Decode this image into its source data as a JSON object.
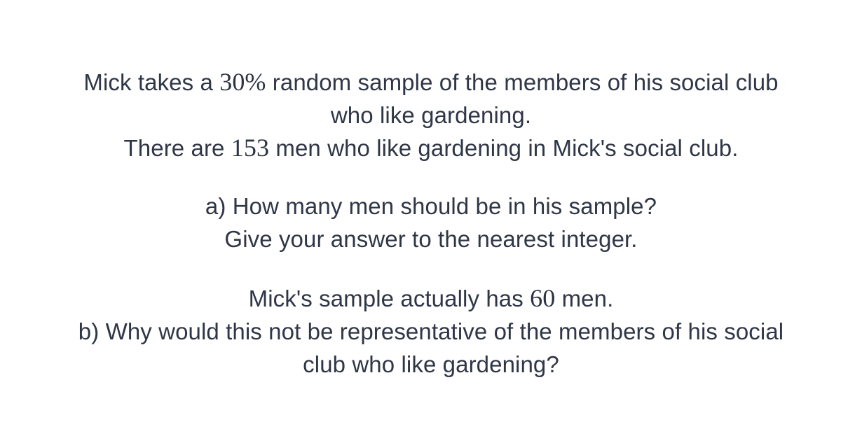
{
  "question": {
    "intro": {
      "line1_before": "Mick takes a ",
      "line1_math": "30%",
      "line1_after": " random sample of the members of his social club",
      "line2": "who like gardening.",
      "line3_before": "There are ",
      "line3_math": "153",
      "line3_after": " men who like gardening in Mick's social club."
    },
    "part_a": {
      "line1": "a) How many men should be in his sample?",
      "line2": "Give your answer to the nearest integer."
    },
    "part_b": {
      "line1_before": "Mick's sample actually has ",
      "line1_math": "60",
      "line1_after": " men.",
      "line2": "b) Why would this not be representative of the members of his social",
      "line3": "club who like gardening?"
    }
  }
}
